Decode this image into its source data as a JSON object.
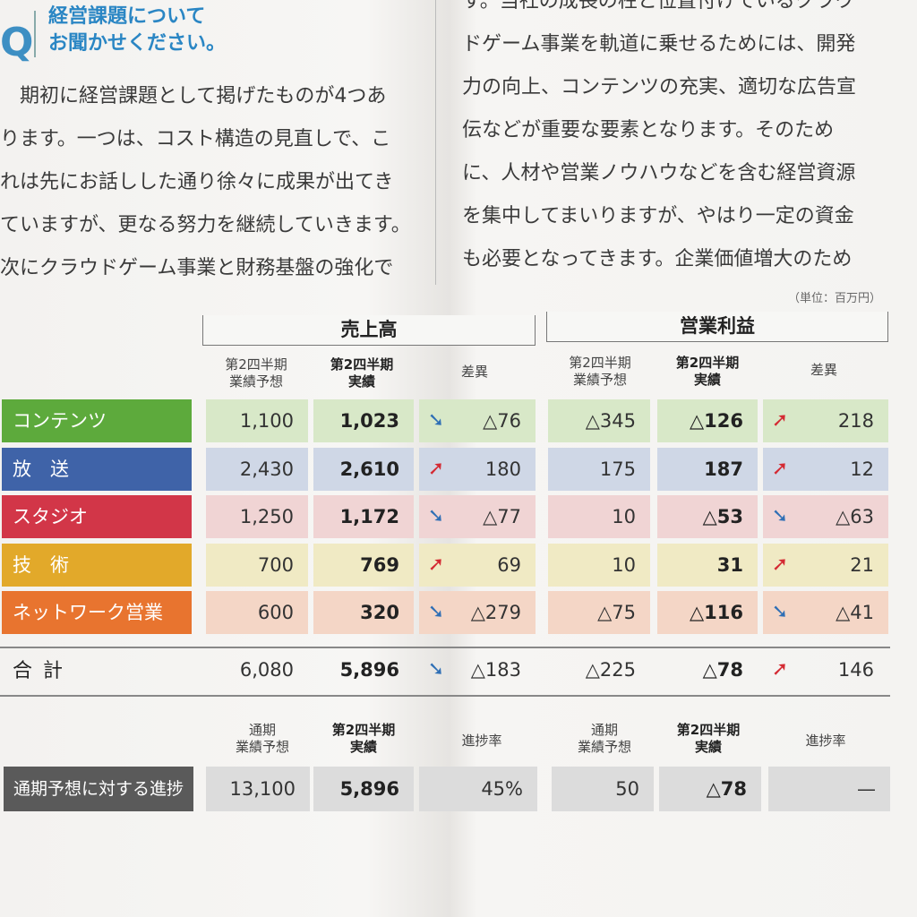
{
  "heading": {
    "q": "Q",
    "title_line1": "経営課題について",
    "title_line2": "お聞かせください。"
  },
  "left_paragraph": [
    "　期初に経営課題として掲げたものが4つあ",
    "ります。一つは、コスト構造の見直しで、こ",
    "れは先にお話しした通り徐々に成果が出てき",
    "ていますが、更なる努力を継続していきます。",
    "次にクラウドゲーム事業と財務基盤の強化で"
  ],
  "right_paragraph": [
    "す。当社の成長の柱と位置付けているクラウ",
    "ドゲーム事業を軌道に乗せるためには、開発",
    "力の向上、コンテンツの充実、適切な広告宣",
    "伝などが重要な要素となります。そのため",
    "に、人材や営業ノウハウなどを含む経営資源",
    "を集中してまいりますが、やはり一定の資金",
    "も必要となってきます。企業価値増大のため"
  ],
  "unit": "（単位：百万円）",
  "groups": {
    "sales": "売上高",
    "profit": "営業利益"
  },
  "col_headers": {
    "forecast": "第2四半期\n業績予想",
    "actual": "第2四半期\n実績",
    "diff": "差異"
  },
  "progress_headers": {
    "annual": "通期\n業績予想",
    "actual": "第2四半期\n実績",
    "rate": "進捗率"
  },
  "colors": {
    "contents": "#5daa3c",
    "broadcast": "#3f63a8",
    "studio": "#d23648",
    "tech": "#e2a92a",
    "network": "#e8742f",
    "down_arrow": "#2f6fb5",
    "up_arrow": "#d42a33"
  },
  "rows": [
    {
      "label": "コンテンツ",
      "s_fc": "1,100",
      "s_ac": "1,023",
      "s_dir": "down",
      "s_diff": "△76",
      "p_fc": "△345",
      "p_ac": "△126",
      "p_dir": "up",
      "p_diff": "218"
    },
    {
      "label": "放　送",
      "s_fc": "2,430",
      "s_ac": "2,610",
      "s_dir": "up",
      "s_diff": "180",
      "p_fc": "175",
      "p_ac": "187",
      "p_dir": "up",
      "p_diff": "12"
    },
    {
      "label": "スタジオ",
      "s_fc": "1,250",
      "s_ac": "1,172",
      "s_dir": "down",
      "s_diff": "△77",
      "p_fc": "10",
      "p_ac": "△53",
      "p_dir": "down",
      "p_diff": "△63"
    },
    {
      "label": "技　術",
      "s_fc": "700",
      "s_ac": "769",
      "s_dir": "up",
      "s_diff": "69",
      "p_fc": "10",
      "p_ac": "31",
      "p_dir": "up",
      "p_diff": "21"
    },
    {
      "label": "ネットワーク営業",
      "s_fc": "600",
      "s_ac": "320",
      "s_dir": "down",
      "s_diff": "△279",
      "p_fc": "△75",
      "p_ac": "△116",
      "p_dir": "down",
      "p_diff": "△41"
    }
  ],
  "total": {
    "label": "合計",
    "s_fc": "6,080",
    "s_ac": "5,896",
    "s_dir": "down",
    "s_diff": "△183",
    "p_fc": "△225",
    "p_ac": "△78",
    "p_dir": "up",
    "p_diff": "146"
  },
  "progress": {
    "label": "通期予想に対する進捗",
    "s_annual": "13,100",
    "s_actual": "5,896",
    "s_rate": "45%",
    "p_annual": "50",
    "p_actual": "△78",
    "p_rate": "—"
  }
}
